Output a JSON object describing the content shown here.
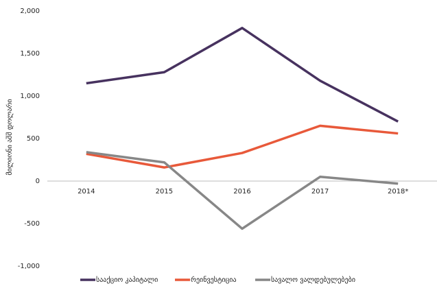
{
  "chart_data": {
    "type": "line",
    "y_axis_label": "მილიონი აშშ დოლარი",
    "categories": [
      "2014",
      "2015",
      "2016",
      "2017",
      "2018*"
    ],
    "series": [
      {
        "name": "სააქციო კაპიტალი",
        "color": "#47325f",
        "values": [
          1150,
          1280,
          1800,
          1180,
          700
        ]
      },
      {
        "name": "რეინვესტიცია",
        "color": "#e8593a",
        "values": [
          320,
          160,
          330,
          650,
          560
        ]
      },
      {
        "name": "სავალო ვალდებულებები",
        "color": "#878787",
        "values": [
          340,
          220,
          -560,
          50,
          -30
        ]
      }
    ],
    "ylim": [
      -1000,
      2000
    ],
    "yticks": [
      {
        "value": -1000,
        "label": "-1,000"
      },
      -500,
      0,
      500,
      {
        "value": 1000,
        "label": "1,000"
      },
      {
        "value": 1500,
        "label": "1,500"
      },
      {
        "value": 2000,
        "label": "2,000"
      }
    ],
    "grid": false,
    "legend": "bottom"
  }
}
